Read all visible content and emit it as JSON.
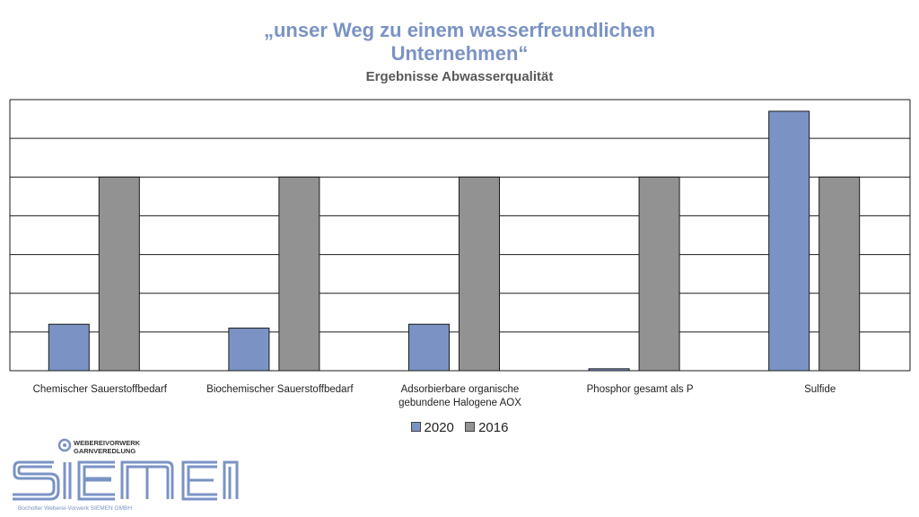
{
  "title_line1": "„unser Weg zu einem wasserfreundlichen",
  "title_line2": "Unternehmen“",
  "subtitle": "Ergebnisse Abwasserqualität",
  "chart_data": {
    "type": "bar",
    "categories": [
      [
        "Chemischer Sauerstoffbedarf"
      ],
      [
        "Biochemischer Sauerstoffbedarf"
      ],
      [
        "Adsorbierbare organische",
        "gebundene Halogene AOX"
      ],
      [
        "Phosphor gesamt als P"
      ],
      [
        "Sulfide"
      ]
    ],
    "series": [
      {
        "name": "2020",
        "color": "#7a93c4",
        "values": [
          1.2,
          1.1,
          1.2,
          0.05,
          6.7
        ]
      },
      {
        "name": "2016",
        "color": "#929292",
        "values": [
          5,
          5,
          5,
          5,
          5
        ]
      }
    ],
    "ylim": [
      0,
      7
    ],
    "gridlines": 7,
    "legend_position": "bottom"
  },
  "logo": {
    "top_line1": "WEBEREIVORWERK",
    "top_line2": "GARNVEREDLUNG",
    "brand": "SIEMEN",
    "caption": "Bocholter Weberei-Vorwerk SIEMEN GMBH",
    "color": "#7a93c4"
  }
}
